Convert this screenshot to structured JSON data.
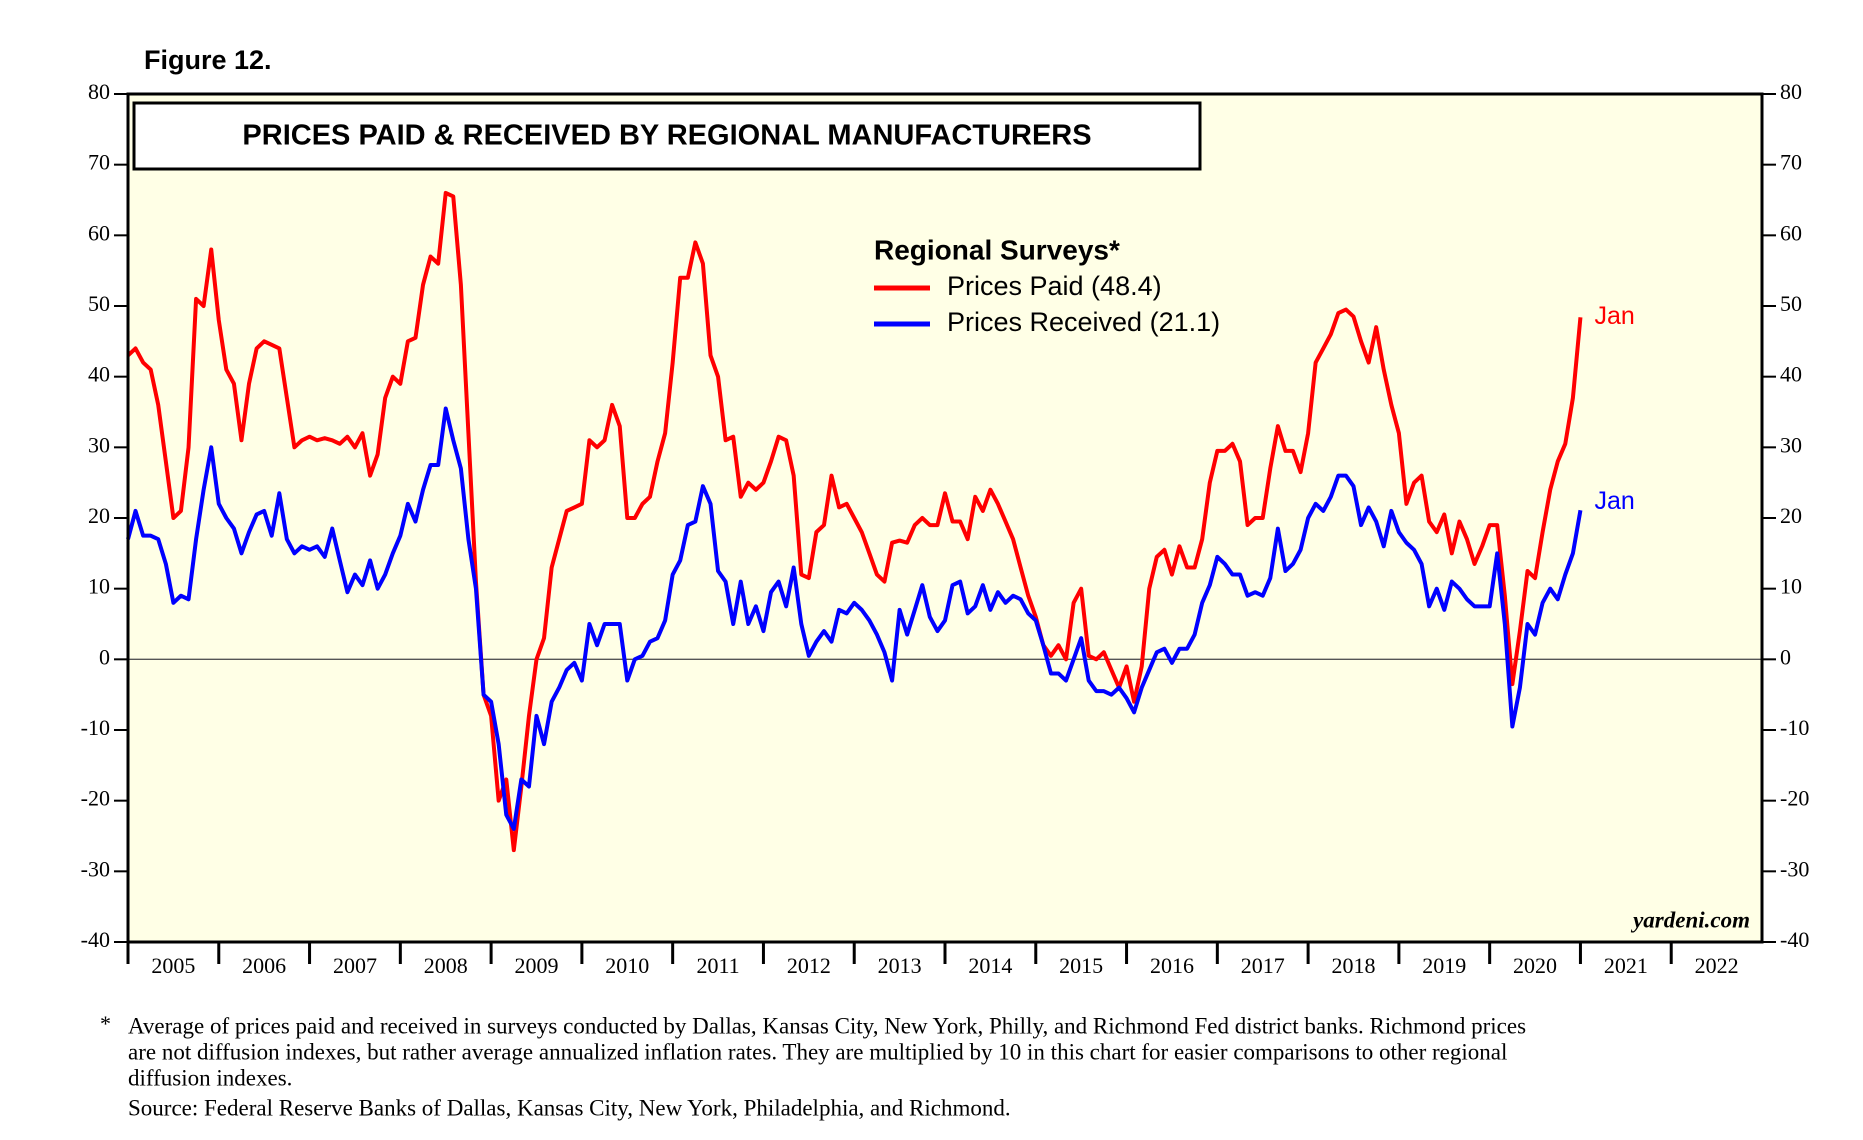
{
  "chart_data": {
    "type": "line",
    "figure_label": "Figure 12.",
    "title": "PRICES PAID & RECEIVED BY REGIONAL MANUFACTURERS",
    "legend_title": "Regional Surveys*",
    "source_mark": "yardeni.com",
    "footnote_marker": "*",
    "footnote": [
      "Average of prices paid and received in surveys conducted by Dallas, Kansas City, New York, Philly, and Richmond Fed district banks. Richmond prices",
      "are not diffusion indexes, but rather average annualized inflation rates. They are multiplied by 10 in this chart for easier comparisons to other regional",
      "diffusion indexes."
    ],
    "source": "Source: Federal Reserve Banks of Dallas, Kansas City, New York, Philadelphia, and Richmond.",
    "xlim": [
      2005,
      2023
    ],
    "xticks": [
      2005,
      2006,
      2007,
      2008,
      2009,
      2010,
      2011,
      2012,
      2013,
      2014,
      2015,
      2016,
      2017,
      2018,
      2019,
      2020,
      2021,
      2022
    ],
    "ylim": [
      -40,
      80
    ],
    "yticks": [
      -40,
      -30,
      -20,
      -10,
      0,
      10,
      20,
      30,
      40,
      50,
      60,
      70,
      80
    ],
    "zero_line": true,
    "x": [
      2005,
      2005.083,
      2005.167,
      2005.25,
      2005.333,
      2005.417,
      2005.5,
      2005.583,
      2005.667,
      2005.75,
      2005.833,
      2005.917,
      2006,
      2006.083,
      2006.167,
      2006.25,
      2006.333,
      2006.417,
      2006.5,
      2006.583,
      2006.667,
      2006.75,
      2006.833,
      2006.917,
      2007,
      2007.083,
      2007.167,
      2007.25,
      2007.333,
      2007.417,
      2007.5,
      2007.583,
      2007.667,
      2007.75,
      2007.833,
      2007.917,
      2008,
      2008.083,
      2008.167,
      2008.25,
      2008.333,
      2008.417,
      2008.5,
      2008.583,
      2008.667,
      2008.75,
      2008.833,
      2008.917,
      2009,
      2009.083,
      2009.167,
      2009.25,
      2009.333,
      2009.417,
      2009.5,
      2009.583,
      2009.667,
      2009.75,
      2009.833,
      2009.917,
      2010,
      2010.083,
      2010.167,
      2010.25,
      2010.333,
      2010.417,
      2010.5,
      2010.583,
      2010.667,
      2010.75,
      2010.833,
      2010.917,
      2011,
      2011.083,
      2011.167,
      2011.25,
      2011.333,
      2011.417,
      2011.5,
      2011.583,
      2011.667,
      2011.75,
      2011.833,
      2011.917,
      2012,
      2012.083,
      2012.167,
      2012.25,
      2012.333,
      2012.417,
      2012.5,
      2012.583,
      2012.667,
      2012.75,
      2012.833,
      2012.917,
      2013,
      2013.083,
      2013.167,
      2013.25,
      2013.333,
      2013.417,
      2013.5,
      2013.583,
      2013.667,
      2013.75,
      2013.833,
      2013.917,
      2014,
      2014.083,
      2014.167,
      2014.25,
      2014.333,
      2014.417,
      2014.5,
      2014.583,
      2014.667,
      2014.75,
      2014.833,
      2014.917,
      2015,
      2015.083,
      2015.167,
      2015.25,
      2015.333,
      2015.417,
      2015.5,
      2015.583,
      2015.667,
      2015.75,
      2015.833,
      2015.917,
      2016,
      2016.083,
      2016.167,
      2016.25,
      2016.333,
      2016.417,
      2016.5,
      2016.583,
      2016.667,
      2016.75,
      2016.833,
      2016.917,
      2017,
      2017.083,
      2017.167,
      2017.25,
      2017.333,
      2017.417,
      2017.5,
      2017.583,
      2017.667,
      2017.75,
      2017.833,
      2017.917,
      2018,
      2018.083,
      2018.167,
      2018.25,
      2018.333,
      2018.417,
      2018.5,
      2018.583,
      2018.667,
      2018.75,
      2018.833,
      2018.917,
      2019,
      2019.083,
      2019.167,
      2019.25,
      2019.333,
      2019.417,
      2019.5,
      2019.583,
      2019.667,
      2019.75,
      2019.833,
      2019.917,
      2020,
      2020.083,
      2020.167,
      2020.25,
      2020.333,
      2020.417,
      2020.5,
      2020.583,
      2020.667,
      2020.75,
      2020.833,
      2020.917,
      2021
    ],
    "series": [
      {
        "name": "Prices Paid (48.4)",
        "color": "#ff0000",
        "end_label": "Jan",
        "values": [
          43,
          44,
          42,
          41,
          36,
          28,
          20,
          21,
          30,
          51,
          50,
          58,
          48,
          41,
          39,
          31,
          39,
          44,
          45,
          44.5,
          44,
          37,
          30,
          31,
          31.5,
          31,
          31.3,
          31,
          30.5,
          31.5,
          30,
          32,
          26,
          29,
          37,
          40,
          39,
          45,
          45.5,
          53,
          57,
          56,
          66,
          65.5,
          53,
          32,
          11,
          -5,
          -8,
          -20,
          -17,
          -27,
          -18,
          -8,
          0,
          3,
          13,
          17,
          21,
          21.5,
          22,
          31,
          30,
          31,
          36,
          33,
          20,
          20,
          22,
          23,
          28,
          32,
          42,
          54,
          54,
          59,
          56,
          43,
          40,
          31,
          31.5,
          23,
          25,
          24,
          25,
          28,
          31.5,
          31,
          26,
          12,
          11.5,
          18,
          19,
          26,
          21.5,
          22,
          20,
          18,
          15,
          12,
          11,
          16.5,
          16.8,
          16.5,
          19,
          20,
          19,
          19,
          23.5,
          19.5,
          19.5,
          17,
          23,
          21,
          24,
          22,
          19.5,
          17,
          13,
          9,
          6,
          2,
          0.5,
          2,
          0,
          8,
          10,
          0.5,
          0,
          1,
          -1.5,
          -4,
          -1,
          -6,
          -1,
          10,
          14.5,
          15.5,
          12,
          16,
          13,
          13,
          17,
          25,
          29.5,
          29.5,
          30.5,
          28,
          19,
          20,
          20,
          27,
          33,
          29.5,
          29.5,
          26.5,
          32,
          42,
          44,
          46,
          49,
          49.5,
          48.5,
          45,
          42,
          47,
          41,
          36,
          32,
          22,
          25,
          26,
          19.5,
          18,
          20.5,
          15,
          19.5,
          17,
          13.5,
          16,
          19,
          19,
          9,
          -3.5,
          4,
          12.5,
          11.5,
          18,
          24,
          28,
          30.5,
          37,
          48.4
        ]
      },
      {
        "name": "Prices Received (21.1)",
        "color": "#0000ff",
        "end_label": "Jan",
        "values": [
          17,
          21,
          17.5,
          17.5,
          17,
          13.5,
          8,
          9,
          8.5,
          17,
          24,
          30,
          22,
          20,
          18.5,
          15,
          18,
          20.5,
          21,
          17.5,
          23.5,
          17,
          15,
          16,
          15.5,
          16,
          14.5,
          18.5,
          14,
          9.5,
          12,
          10.5,
          14,
          10,
          12,
          15,
          17.5,
          22,
          19.5,
          24,
          27.5,
          27.5,
          35.5,
          31,
          27,
          17,
          10,
          -5,
          -6,
          -12,
          -22,
          -24,
          -17,
          -18,
          -8,
          -12,
          -6,
          -4,
          -1.5,
          -0.5,
          -3,
          5,
          2,
          5,
          5,
          5,
          -3,
          0,
          0.5,
          2.5,
          3,
          5.5,
          12,
          14,
          19,
          19.5,
          24.5,
          22,
          12.5,
          11,
          5,
          11,
          5,
          7.5,
          4,
          9.5,
          11,
          7.5,
          13,
          5,
          0.5,
          2.5,
          4,
          2.5,
          7,
          6.5,
          8,
          7,
          5.5,
          3.5,
          1,
          -3,
          7,
          3.5,
          7,
          10.5,
          6,
          4,
          5.5,
          10.5,
          11,
          6.5,
          7.5,
          10.5,
          7,
          9.5,
          8,
          9,
          8.5,
          6.5,
          5.5,
          2,
          -2,
          -2,
          -3,
          0,
          3,
          -3,
          -4.5,
          -4.5,
          -5,
          -4,
          -5.5,
          -7.5,
          -4,
          -1.5,
          1,
          1.5,
          -0.5,
          1.5,
          1.5,
          3.5,
          8,
          10.5,
          14.5,
          13.5,
          12,
          12,
          9,
          9.5,
          9,
          11.5,
          18.5,
          12.5,
          13.5,
          15.5,
          20,
          22,
          21,
          23,
          26,
          26,
          24.5,
          19,
          21.5,
          19.5,
          16,
          21,
          18,
          16.5,
          15.5,
          13.5,
          7.5,
          10,
          7,
          11,
          10,
          8.5,
          7.5,
          7.5,
          7.5,
          15,
          5,
          -9.5,
          -4,
          5,
          3.5,
          8,
          10,
          8.5,
          12,
          15,
          21.1
        ]
      }
    ]
  }
}
